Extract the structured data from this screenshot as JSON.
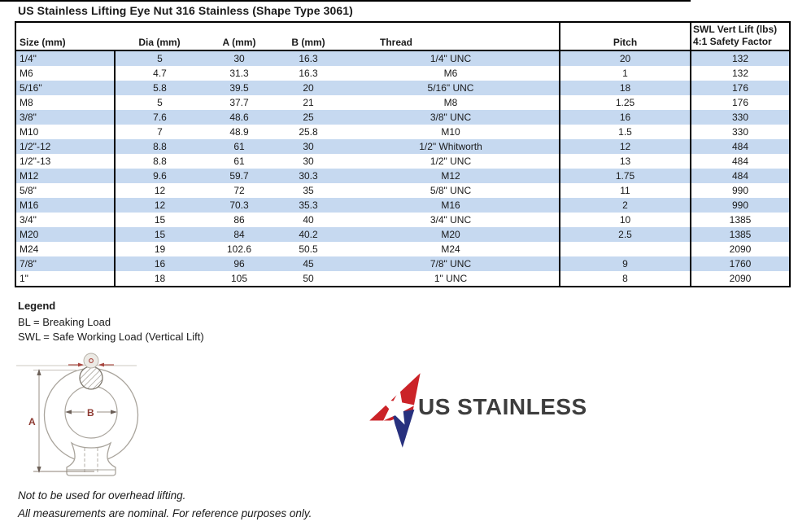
{
  "page": {
    "title": "US Stainless Lifting Eye Nut 316 Stainless (Shape Type 3061)",
    "colors": {
      "row_stripe": "#c6d9f0",
      "table_border": "#000000",
      "logo_red": "#cb2328",
      "logo_blue": "#28317e",
      "logo_text_color": "#3d3d3d",
      "diagram_dimension_red": "#8e3b33",
      "diagram_outline_gray": "#a9a49c"
    }
  },
  "table": {
    "columns": [
      {
        "key": "size",
        "label": "Size (mm)"
      },
      {
        "key": "dia",
        "label": "Dia (mm)"
      },
      {
        "key": "a",
        "label": "A (mm)"
      },
      {
        "key": "b",
        "label": "B (mm)"
      },
      {
        "key": "thread",
        "label": "Thread"
      },
      {
        "key": "pitch",
        "label": "Pitch"
      },
      {
        "key": "swl",
        "label": "SWL Vert Lift (lbs)",
        "label_line2": "4:1 Safety Factor"
      }
    ],
    "rows": [
      [
        "1/4\"",
        "5",
        "30",
        "16.3",
        "1/4\" UNC",
        "20",
        "132"
      ],
      [
        "M6",
        "4.7",
        "31.3",
        "16.3",
        "M6",
        "1",
        "132"
      ],
      [
        "5/16\"",
        "5.8",
        "39.5",
        "20",
        "5/16\" UNC",
        "18",
        "176"
      ],
      [
        "M8",
        "5",
        "37.7",
        "21",
        "M8",
        "1.25",
        "176"
      ],
      [
        "3/8\"",
        "7.6",
        "48.6",
        "25",
        "3/8\" UNC",
        "16",
        "330"
      ],
      [
        "M10",
        "7",
        "48.9",
        "25.8",
        "M10",
        "1.5",
        "330"
      ],
      [
        "1/2\"-12",
        "8.8",
        "61",
        "30",
        "1/2\" Whitworth",
        "12",
        "484"
      ],
      [
        "1/2\"-13",
        "8.8",
        "61",
        "30",
        "1/2\" UNC",
        "13",
        "484"
      ],
      [
        "M12",
        "9.6",
        "59.7",
        "30.3",
        "M12",
        "1.75",
        "484"
      ],
      [
        "5/8\"",
        "12",
        "72",
        "35",
        "5/8\" UNC",
        "11",
        "990"
      ],
      [
        "M16",
        "12",
        "70.3",
        "35.3",
        "M16",
        "2",
        "990"
      ],
      [
        "3/4\"",
        "15",
        "86",
        "40",
        "3/4\" UNC",
        "10",
        "1385"
      ],
      [
        "M20",
        "15",
        "84",
        "40.2",
        "M20",
        "2.5",
        "1385"
      ],
      [
        "M24",
        "19",
        "102.6",
        "50.5",
        "M24",
        "",
        "2090"
      ],
      [
        "7/8\"",
        "16",
        "96",
        "45",
        "7/8\" UNC",
        "9",
        "1760"
      ],
      [
        "1\"",
        "18",
        "105",
        "50",
        "1\" UNC",
        "8",
        "2090"
      ]
    ]
  },
  "legend": {
    "title": "Legend",
    "items": [
      "BL = Breaking Load",
      "SWL = Safe Working Load (Vertical Lift)"
    ]
  },
  "diagram": {
    "labels": {
      "a": "A",
      "b": "B"
    }
  },
  "logo": {
    "text": "US STAINLESS"
  },
  "notes": [
    "Not to be used for overhead lifting.",
    "All measurements are nominal. For reference purposes only."
  ]
}
